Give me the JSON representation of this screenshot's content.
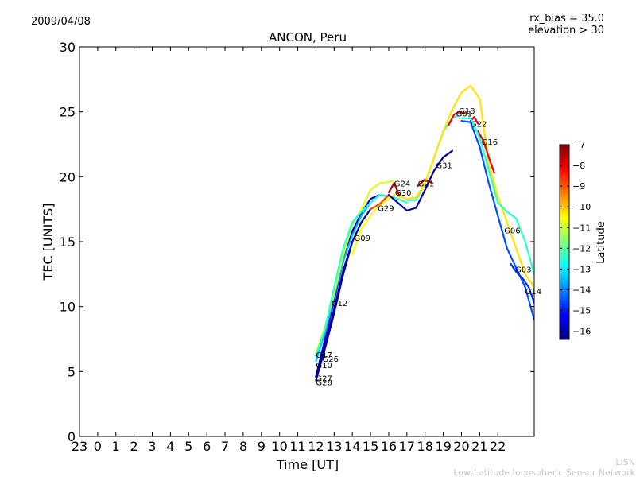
{
  "header": {
    "date": "2009/04/08",
    "bias": "rx_bias = 35.0",
    "elevation": "elevation > 30"
  },
  "footer": {
    "line1": "LISN",
    "line2": "Low-Latitude Ionospheric Sensor Network"
  },
  "colors": {
    "jet": [
      "#00007f",
      "#0000ff",
      "#007fff",
      "#00ffff",
      "#7fff7f",
      "#ffff00",
      "#ff7f00",
      "#ff0000",
      "#7f0000"
    ]
  },
  "chart_data": {
    "type": "line",
    "title": "ANCON, Peru",
    "xlabel": "Time [UT]",
    "ylabel": "TEC [UNITS]",
    "xlim": [
      -1,
      24
    ],
    "ylim": [
      0,
      30
    ],
    "x_ticks": [
      -1,
      0,
      1,
      2,
      3,
      4,
      5,
      6,
      7,
      8,
      9,
      10,
      11,
      12,
      13,
      14,
      15,
      16,
      17,
      18,
      19,
      20,
      21,
      22
    ],
    "x_tick_labels": [
      "23",
      "0",
      "1",
      "2",
      "3",
      "4",
      "5",
      "6",
      "7",
      "8",
      "9",
      "10",
      "11",
      "12",
      "13",
      "14",
      "15",
      "16",
      "17",
      "18",
      "19",
      "20",
      "21",
      "22"
    ],
    "y_ticks": [
      0,
      5,
      10,
      15,
      20,
      25,
      30
    ],
    "colorbar": {
      "label": "Latitude",
      "range": [
        -16.4,
        -7
      ],
      "ticks": [
        -7,
        -8,
        -9,
        -10,
        -11,
        -12,
        -13,
        -14,
        -15,
        -16
      ]
    },
    "series": [
      {
        "name": "G12",
        "lat": -15.7,
        "x": [
          12,
          12.5,
          13,
          13.5,
          14,
          14.5,
          15,
          15.5,
          16,
          16.5
        ],
        "y": [
          4.6,
          7.5,
          10.5,
          13.5,
          15.8,
          17.2,
          18.3,
          18.6,
          18.5,
          18.3
        ]
      },
      {
        "name": "G10",
        "lat": -13.5,
        "x": [
          12,
          12.5,
          13,
          13.5,
          14,
          14.5,
          15
        ],
        "y": [
          5.8,
          8.0,
          10.8,
          13.5,
          15.5,
          17.0,
          18.0
        ]
      },
      {
        "name": "G17",
        "lat": -10.8,
        "x": [
          12,
          12.5,
          13,
          13.5,
          14,
          14.5,
          15,
          15.5,
          16,
          16.3
        ],
        "y": [
          6.4,
          8.5,
          11.0,
          14.0,
          16.3,
          17.5,
          19.0,
          19.5,
          19.6,
          19.7
        ]
      },
      {
        "name": "G26",
        "lat": -12.5,
        "x": [
          12,
          12.5,
          13,
          13.5,
          14,
          14.5,
          15,
          15.5,
          16,
          16.5,
          17
        ],
        "y": [
          6.2,
          8.3,
          11.5,
          14.5,
          16.5,
          17.3,
          18.0,
          18.6,
          18.5,
          18.3,
          18.0
        ]
      },
      {
        "name": "G27",
        "lat": -16.2,
        "x": [
          12,
          12.5,
          13,
          13.5,
          14,
          14.5,
          15
        ],
        "y": [
          4.6,
          7.0,
          9.8,
          12.8,
          15.0,
          16.5,
          17.5
        ]
      },
      {
        "name": "G28",
        "lat": -16.0,
        "x": [
          12,
          12.5,
          13,
          13.5,
          14
        ],
        "y": [
          4.3,
          6.8,
          9.5,
          12.5,
          15.0
        ]
      },
      {
        "name": "G09",
        "lat": -10.6,
        "x": [
          14,
          14.5,
          15,
          15.5,
          16,
          16.5
        ],
        "y": [
          14.0,
          16.0,
          17.0,
          17.8,
          18.3,
          18.8
        ]
      },
      {
        "name": "G29",
        "lat": -8.8,
        "x": [
          15,
          15.5,
          16
        ],
        "y": [
          17.5,
          17.9,
          18.6
        ]
      },
      {
        "name": "G24",
        "lat": -7.5,
        "x": [
          16,
          16.3,
          16.6
        ],
        "y": [
          18.8,
          19.5,
          18.5
        ]
      },
      {
        "name": "G30",
        "lat": -16.0,
        "x": [
          16,
          16.5,
          17,
          17.5,
          18,
          18.5,
          19,
          19.5
        ],
        "y": [
          18.6,
          18.0,
          17.4,
          17.6,
          19.0,
          20.5,
          21.5,
          22.0
        ]
      },
      {
        "name": "G21",
        "lat": -7.5,
        "x": [
          17.6,
          18,
          18.4
        ],
        "y": [
          19.3,
          19.8,
          19.5
        ]
      },
      {
        "name": "G31",
        "lat": -12.5,
        "x": [
          17,
          17.5,
          18,
          18.5,
          19,
          19.5,
          19.8
        ],
        "y": [
          18.2,
          18.2,
          19.5,
          21.5,
          23.5,
          24.5,
          24.7
        ]
      },
      {
        "name": "G01",
        "lat": -8.2,
        "x": [
          19.3,
          19.6,
          19.9,
          20.2
        ],
        "y": [
          24.0,
          24.8,
          25.0,
          24.9
        ]
      },
      {
        "name": "G18",
        "lat": -10.3,
        "x": [
          16.5,
          17,
          17.5,
          18,
          18.5,
          19,
          19.5,
          20,
          20.5,
          21,
          21.5,
          22,
          22.5,
          23,
          23.5,
          24
        ],
        "y": [
          18.5,
          18.3,
          18.4,
          19.5,
          21.5,
          23.5,
          25.2,
          26.5,
          27.0,
          26.0,
          21.0,
          18.5,
          16.5,
          14.5,
          12.5,
          11.5
        ]
      },
      {
        "name": "G22",
        "lat": -7.8,
        "x": [
          20.5,
          20.7,
          20.9
        ],
        "y": [
          24.3,
          24.6,
          24.1
        ]
      },
      {
        "name": "G16",
        "lat": -8.0,
        "x": [
          20.9,
          21.2,
          21.5,
          21.8
        ],
        "y": [
          23.5,
          22.8,
          21.5,
          20.3
        ]
      },
      {
        "name": "G06",
        "lat": -12.5,
        "x": [
          20,
          20.5,
          21,
          21.5,
          22,
          22.5,
          23,
          23.5,
          24
        ],
        "y": [
          24.5,
          24.5,
          23.0,
          20.5,
          18.0,
          17.3,
          16.8,
          15.0,
          12.5
        ]
      },
      {
        "name": "G03",
        "lat": -14.5,
        "x": [
          20,
          20.5,
          21,
          21.5,
          22,
          22.5,
          23,
          23.5,
          24
        ],
        "y": [
          24.3,
          24.2,
          22.3,
          19.5,
          17.0,
          14.5,
          13.0,
          11.5,
          9.0
        ]
      },
      {
        "name": "G14",
        "lat": -14.8,
        "x": [
          22.7,
          23,
          23.4,
          23.7,
          24
        ],
        "y": [
          13.3,
          12.7,
          12.1,
          11.5,
          10.3
        ]
      }
    ],
    "labels": [
      {
        "text": "G17",
        "x": 12.0,
        "y": 6.3
      },
      {
        "text": "G26",
        "x": 12.35,
        "y": 6.0
      },
      {
        "text": "G10",
        "x": 12.0,
        "y": 5.5
      },
      {
        "text": "G27",
        "x": 12.0,
        "y": 4.5
      },
      {
        "text": "G28",
        "x": 12.0,
        "y": 4.2
      },
      {
        "text": "G12",
        "x": 12.85,
        "y": 10.3
      },
      {
        "text": "G09",
        "x": 14.1,
        "y": 15.3
      },
      {
        "text": "G29",
        "x": 15.4,
        "y": 17.6
      },
      {
        "text": "G30",
        "x": 16.35,
        "y": 18.8
      },
      {
        "text": "G24",
        "x": 16.3,
        "y": 19.5
      },
      {
        "text": "G21",
        "x": 17.6,
        "y": 19.5
      },
      {
        "text": "G31",
        "x": 18.6,
        "y": 20.9
      },
      {
        "text": "G01",
        "x": 19.7,
        "y": 24.9
      },
      {
        "text": "G18",
        "x": 19.85,
        "y": 25.1
      },
      {
        "text": "G22",
        "x": 20.5,
        "y": 24.1
      },
      {
        "text": "G16",
        "x": 21.1,
        "y": 22.7
      },
      {
        "text": "G06",
        "x": 22.35,
        "y": 15.9
      },
      {
        "text": "G03",
        "x": 22.95,
        "y": 12.9
      },
      {
        "text": "G14",
        "x": 23.5,
        "y": 11.2
      }
    ]
  }
}
